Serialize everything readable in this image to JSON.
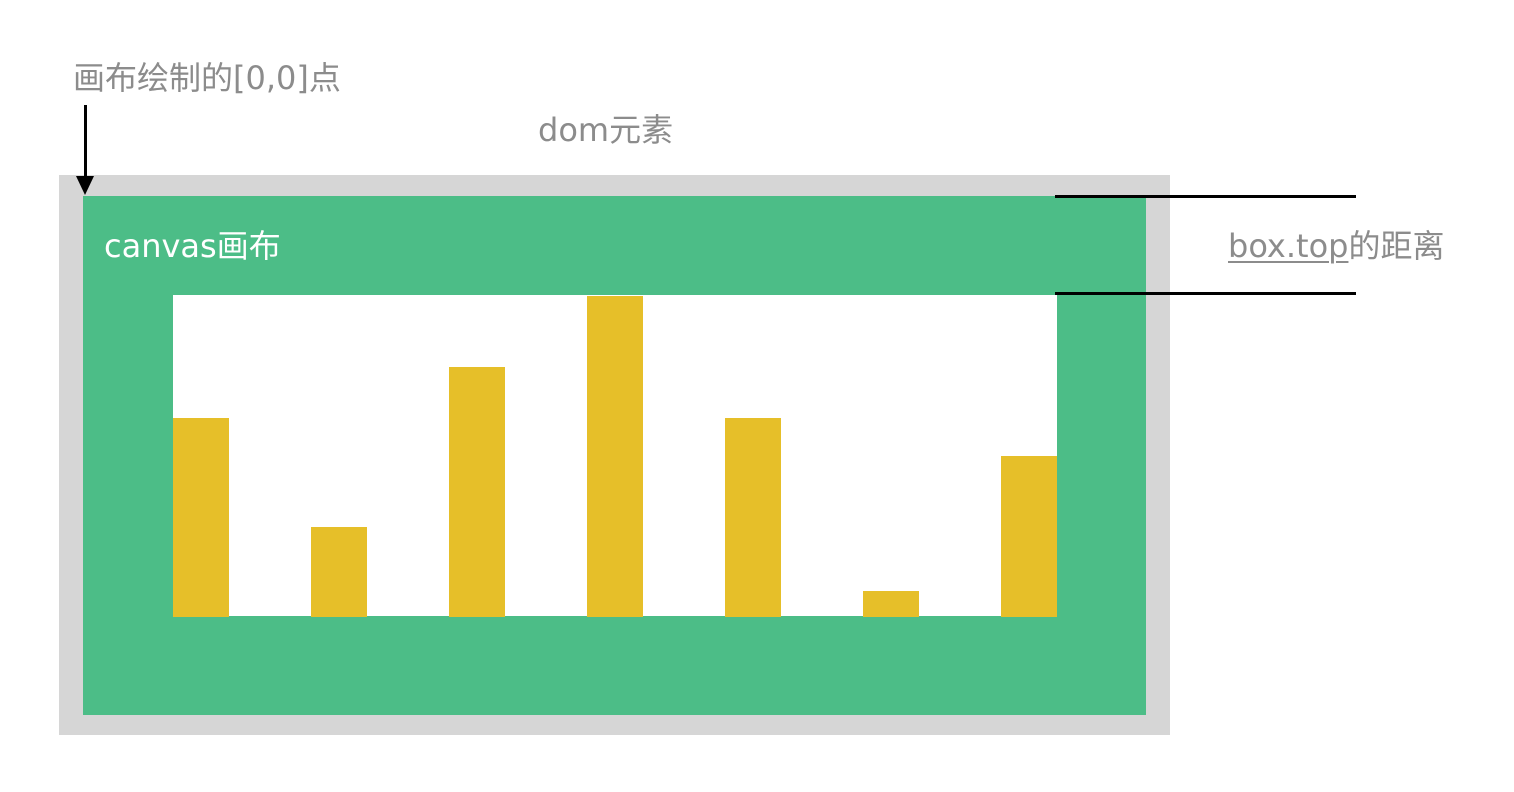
{
  "labels": {
    "origin": "画布绘制的[0,0]点",
    "dom_element": "dom元素",
    "canvas": "canvas画布",
    "distance_code": "box.top",
    "distance_suffix": "的距离"
  },
  "colors": {
    "dom_box": "#d6d6d6",
    "canvas": "#4cbd87",
    "plot_area": "#ffffff",
    "bar": "#e6bf29",
    "label_text": "#8c8c8c",
    "canvas_text": "#ffffff",
    "lines": "#000000"
  },
  "chart_data": {
    "type": "bar",
    "values": [
      0.62,
      0.28,
      0.78,
      1.0,
      0.62,
      0.08,
      0.5
    ],
    "ylim": [
      0,
      1
    ]
  }
}
